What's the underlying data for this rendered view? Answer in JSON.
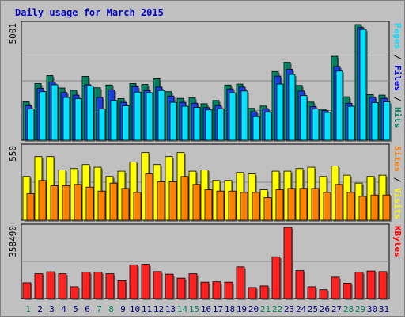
{
  "chart_data": {
    "type": "bar",
    "title": "Daily usage for March 2015",
    "categories": [
      "1",
      "2",
      "3",
      "4",
      "5",
      "6",
      "7",
      "8",
      "9",
      "10",
      "11",
      "12",
      "13",
      "14",
      "15",
      "16",
      "17",
      "18",
      "19",
      "20",
      "21",
      "22",
      "23",
      "24",
      "25",
      "26",
      "27",
      "28",
      "29",
      "30",
      "31"
    ],
    "weekend_days": [
      "1",
      "7",
      "8",
      "14",
      "15",
      "21",
      "22",
      "28",
      "29"
    ],
    "panels": [
      {
        "id": "hits-files-pages",
        "scale_label": "5001",
        "ymax": 5001,
        "right_label_parts": [
          {
            "text": "Pages",
            "color": "#00e0ff"
          },
          {
            "text": " / ",
            "color": "#000000"
          },
          {
            "text": "Files",
            "color": "#0000ff"
          },
          {
            "text": " / ",
            "color": "#000000"
          },
          {
            "text": "Hits",
            "color": "#008060"
          }
        ],
        "series": [
          {
            "name": "Hits",
            "color": "#008060",
            "values": [
              1660,
              2450,
              2790,
              2260,
              2160,
              2760,
              2270,
              2390,
              1800,
              2450,
              2410,
              2660,
              2100,
              1810,
              1830,
              1580,
              1720,
              2390,
              2430,
              1380,
              1480,
              2970,
              3370,
              2370,
              1650,
              1340,
              3630,
              1880,
              5001,
              1970,
              1950
            ]
          },
          {
            "name": "Files",
            "color": "#1840e0",
            "values": [
              1500,
              2250,
              2520,
              2060,
              1950,
              2400,
              1850,
              2180,
              1640,
              2320,
              2150,
              2300,
              1910,
              1640,
              1600,
              1410,
              1500,
              2220,
              2300,
              1230,
              1360,
              2770,
              3070,
              2130,
              1460,
              1280,
              3190,
              1600,
              4870,
              1860,
              1810
            ]
          },
          {
            "name": "Pages",
            "color": "#00e0ff",
            "values": [
              1350,
              2100,
              2400,
              1850,
              1800,
              2350,
              1350,
              1720,
              1490,
              2080,
              2050,
              2150,
              1640,
              1470,
              1420,
              1310,
              1360,
              2050,
              2130,
              1020,
              1210,
              2430,
              2840,
              1930,
              1350,
              1200,
              2990,
              1470,
              4790,
              1630,
              1660
            ]
          }
        ]
      },
      {
        "id": "visits-sites",
        "scale_label": "550",
        "ymax": 550,
        "right_label_parts": [
          {
            "text": "Sites",
            "color": "#ff8000"
          },
          {
            "text": " / ",
            "color": "#000000"
          },
          {
            "text": "Visits",
            "color": "#ffff00"
          }
        ],
        "series": [
          {
            "name": "Visits",
            "color": "#ffff00",
            "values": [
              330,
              480,
              480,
              380,
              390,
              420,
              400,
              330,
              370,
              440,
              510,
              420,
              480,
              510,
              370,
              380,
              300,
              300,
              360,
              350,
              230,
              370,
              370,
              390,
              400,
              330,
              410,
              340,
              280,
              330,
              340
            ]
          },
          {
            "name": "Sites",
            "color": "#ff8000",
            "values": [
              200,
              300,
              260,
              260,
              270,
              250,
              220,
              280,
              240,
              210,
              350,
              290,
              290,
              330,
              270,
              230,
              220,
              220,
              210,
              210,
              170,
              230,
              240,
              240,
              240,
              210,
              270,
              210,
              180,
              190,
              190
            ]
          }
        ]
      },
      {
        "id": "kbytes",
        "scale_label": "358490",
        "ymax": 358490,
        "right_label_parts": [
          {
            "text": "KBytes",
            "color": "#ff0000"
          }
        ],
        "series": [
          {
            "name": "KBytes",
            "color": "#ff2020",
            "values": [
              80000,
              125000,
              135000,
              125000,
              60000,
              133000,
              133000,
              125000,
              90000,
              170000,
              173000,
              136000,
              123000,
              103000,
              125000,
              83000,
              85000,
              83000,
              160000,
              56000,
              64000,
              210000,
              358490,
              141000,
              60000,
              45000,
              108000,
              78000,
              133000,
              139000,
              136000
            ]
          }
        ]
      }
    ]
  }
}
